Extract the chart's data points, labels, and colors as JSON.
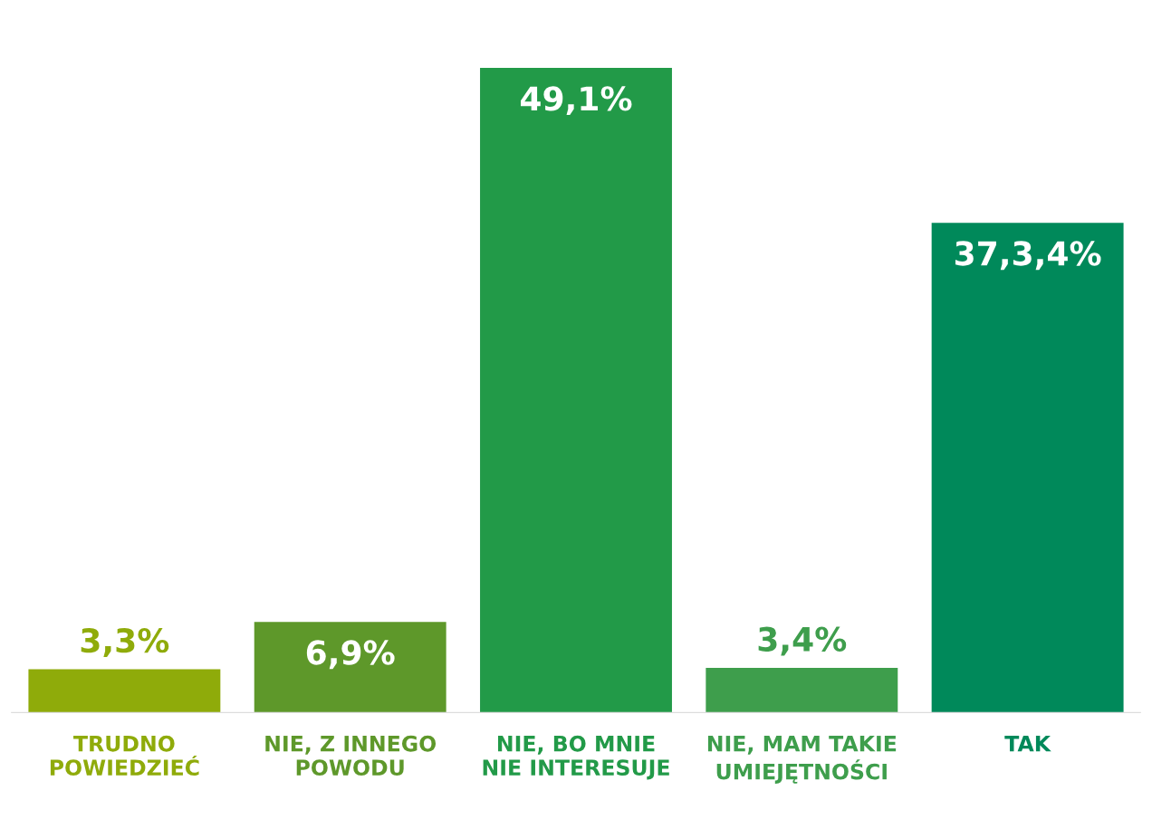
{
  "chart_data": {
    "type": "bar",
    "categories": [
      "TRUDNO\nPOWIEDZIEĆ",
      "NIE, Z INNEGO\nPOWODU",
      "NIE, BO MNIE\nNIE INTERESUJE",
      "NIE, MAM TAKIE\nUMIEJĘTNOŚCI",
      "TAK"
    ],
    "values": [
      3.3,
      6.9,
      49.1,
      3.4,
      37.3
    ],
    "value_labels": [
      "3,3%",
      "6,9%",
      "49,1%",
      "3,4%",
      "37,3,4%"
    ],
    "colors": [
      "#8fab0a",
      "#5e982a",
      "#229a48",
      "#3e9e4c",
      "#00895a"
    ],
    "grid": false,
    "legend": false
  }
}
